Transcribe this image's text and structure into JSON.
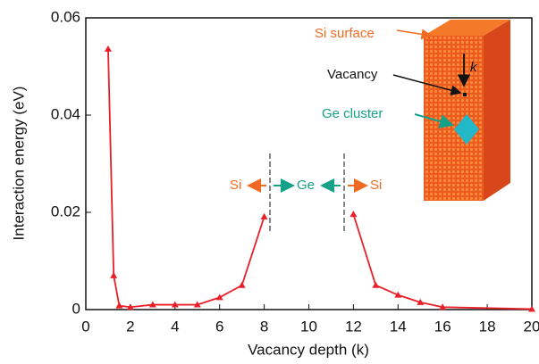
{
  "chart_data": {
    "type": "line",
    "x_label": "Vacancy depth (k)",
    "y_label": "Interaction energy (eV)",
    "x": [
      1,
      1.25,
      1.5,
      2,
      3,
      4,
      5,
      6,
      7,
      8,
      10,
      12,
      13,
      14,
      15,
      16,
      20
    ],
    "series": [
      {
        "color": "#e8202a",
        "values": [
          0.0536,
          0.007,
          0.0008,
          0.0005,
          0.001,
          0.001,
          0.001,
          0.0025,
          0.005,
          0.0191,
          null,
          0.0196,
          0.005,
          0.003,
          0.0015,
          0.0005,
          0.0001
        ]
      }
    ],
    "xlim": [
      0,
      20
    ],
    "xticks": [
      0,
      2,
      4,
      6,
      8,
      10,
      12,
      14,
      16,
      18,
      20
    ],
    "ylim": [
      0,
      0.06
    ],
    "yticks": [
      0,
      0.02,
      0.04,
      0.06
    ],
    "annotations": {
      "left_si": "Si",
      "ge": "Ge",
      "right_si": "Si",
      "si_surface": "Si surface",
      "vacancy": "Vacancy",
      "k": "k",
      "ge_cluster": "Ge cluster"
    }
  }
}
